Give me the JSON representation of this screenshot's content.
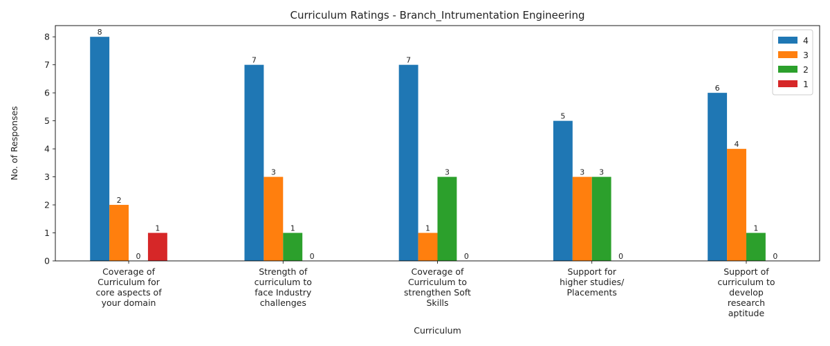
{
  "chart_data": {
    "type": "bar",
    "title": "Curriculum Ratings - Branch_Intrumentation Engineering",
    "xlabel": "Curriculum",
    "ylabel": "No. of Responses",
    "ylim": [
      0,
      8.4
    ],
    "yticks": [
      0,
      1,
      2,
      3,
      4,
      5,
      6,
      7,
      8
    ],
    "grid": false,
    "legend_placement": "top-right",
    "categories": [
      [
        "Coverage of",
        "Curriculum for",
        "core aspects of",
        "your domain"
      ],
      [
        "Strength of",
        "curriculum to",
        "face Industry",
        "challenges"
      ],
      [
        "Coverage of",
        "Curriculum to",
        "strengthen Soft",
        "Skills"
      ],
      [
        "Support for",
        "higher studies/",
        "Placements"
      ],
      [
        "Support of",
        "curriculum to",
        "develop",
        "research",
        "aptitude"
      ]
    ],
    "series": [
      {
        "name": "4",
        "color": "#1f77b4",
        "values": [
          8,
          7,
          7,
          5,
          6
        ]
      },
      {
        "name": "3",
        "color": "#ff7f0e",
        "values": [
          2,
          3,
          1,
          3,
          4
        ]
      },
      {
        "name": "2",
        "color": "#2ca02c",
        "values": [
          0,
          1,
          3,
          3,
          1
        ]
      },
      {
        "name": "1",
        "color": "#d62728",
        "values": [
          1,
          0,
          0,
          0,
          0
        ]
      }
    ]
  }
}
